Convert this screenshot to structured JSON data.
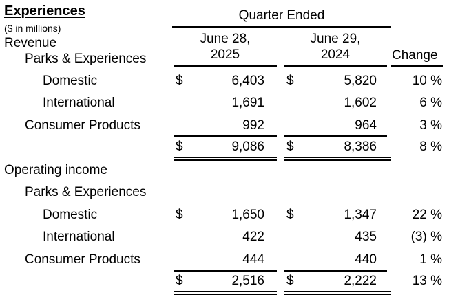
{
  "title": "Experiences",
  "units": "($ in millions)",
  "header": {
    "quarter_ended": "Quarter Ended",
    "col1_line1": "June 28,",
    "col1_line2": "2025",
    "col2_line1": "June 29,",
    "col2_line2": "2024",
    "change": "Change"
  },
  "sections": {
    "revenue": {
      "label": "Revenue",
      "parks_label": "Parks & Experiences",
      "domestic": {
        "label": "Domestic",
        "cur1": "$",
        "v2025": "6,403",
        "cur2": "$",
        "v2024": "5,820",
        "change": "10 %"
      },
      "international": {
        "label": "International",
        "v2025": "1,691",
        "v2024": "1,602",
        "change": "6 %"
      },
      "consumer": {
        "label": "Consumer Products",
        "v2025": "992",
        "v2024": "964",
        "change": "3 %"
      },
      "total": {
        "cur1": "$",
        "v2025": "9,086",
        "cur2": "$",
        "v2024": "8,386",
        "change": "8 %"
      }
    },
    "operating_income": {
      "label": "Operating income",
      "parks_label": "Parks & Experiences",
      "domestic": {
        "label": "Domestic",
        "cur1": "$",
        "v2025": "1,650",
        "cur2": "$",
        "v2024": "1,347",
        "change": "22 %"
      },
      "international": {
        "label": "International",
        "v2025": "422",
        "v2024": "435",
        "change": "(3) %"
      },
      "consumer": {
        "label": "Consumer Products",
        "v2025": "444",
        "v2024": "440",
        "change": "1 %"
      },
      "total": {
        "cur1": "$",
        "v2025": "2,516",
        "cur2": "$",
        "v2024": "2,222",
        "change": "13 %"
      }
    }
  }
}
